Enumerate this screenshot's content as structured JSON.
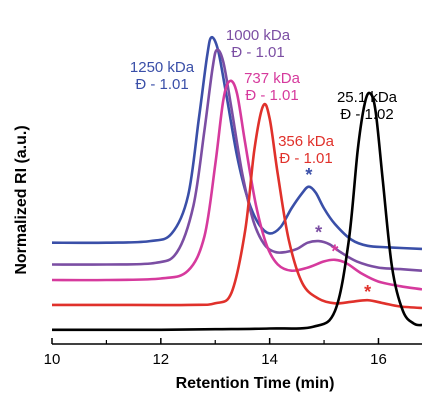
{
  "chart_data": {
    "type": "line",
    "xlabel": "Retention Time (min)",
    "ylabel": "Normalized RI (a.u.)",
    "xlim": [
      10,
      16.8
    ],
    "ylim": [
      0,
      1
    ],
    "x_ticks": [
      "10",
      "12",
      "14",
      "16"
    ],
    "grid": false,
    "legend": "none",
    "series": [
      {
        "color": "#3a4fa8",
        "label_line1": "1250 kDa",
        "label_line2": "Đ - 1.01",
        "star": "*",
        "peak_x": 12.93,
        "peak_y": 0.96,
        "shoulder_x": 14.72,
        "shoulder_y": 0.48,
        "baseline_left": 0.3,
        "baseline_right": 0.28,
        "star_x": 14.72,
        "star_y": 0.53,
        "x": [
          10,
          11,
          11.8,
          12.2,
          12.5,
          12.7,
          12.85,
          12.93,
          13.05,
          13.2,
          13.4,
          13.6,
          13.8,
          14.0,
          14.2,
          14.4,
          14.6,
          14.72,
          14.85,
          15.0,
          15.2,
          15.5,
          15.8,
          16.2,
          16.8
        ],
        "y": [
          0.3,
          0.3,
          0.305,
          0.33,
          0.45,
          0.7,
          0.9,
          0.96,
          0.92,
          0.78,
          0.58,
          0.44,
          0.36,
          0.33,
          0.35,
          0.41,
          0.46,
          0.48,
          0.46,
          0.41,
          0.36,
          0.31,
          0.29,
          0.285,
          0.28
        ]
      },
      {
        "color": "#7b4ea3",
        "label_line1": "1000 kDa",
        "label_line2": "Đ - 1.01",
        "star": "*",
        "peak_x": 13.03,
        "peak_y": 0.92,
        "baseline_left": 0.23,
        "baseline_right": 0.21,
        "star_x": 14.9,
        "star_y": 0.345,
        "x": [
          10,
          11,
          11.9,
          12.3,
          12.6,
          12.8,
          12.95,
          13.03,
          13.15,
          13.3,
          13.5,
          13.7,
          13.9,
          14.1,
          14.3,
          14.5,
          14.7,
          14.9,
          15.1,
          15.3,
          15.6,
          16.0,
          16.4,
          16.8
        ],
        "y": [
          0.23,
          0.23,
          0.235,
          0.27,
          0.42,
          0.66,
          0.86,
          0.92,
          0.88,
          0.73,
          0.52,
          0.37,
          0.295,
          0.27,
          0.27,
          0.28,
          0.3,
          0.305,
          0.295,
          0.27,
          0.24,
          0.22,
          0.215,
          0.21
        ]
      },
      {
        "color": "#d63a9d",
        "label_line1": "737 kDa",
        "label_line2": "Đ - 1.01",
        "star": "*",
        "peak_x": 13.27,
        "peak_y": 0.82,
        "baseline_left": 0.18,
        "baseline_right": 0.15,
        "star_x": 15.2,
        "star_y": 0.285,
        "x": [
          10,
          11,
          12.0,
          12.5,
          12.8,
          13.0,
          13.15,
          13.27,
          13.4,
          13.55,
          13.75,
          13.95,
          14.15,
          14.4,
          14.7,
          15.0,
          15.2,
          15.4,
          15.7,
          16.0,
          16.4,
          16.8
        ],
        "y": [
          0.18,
          0.18,
          0.185,
          0.21,
          0.32,
          0.55,
          0.76,
          0.82,
          0.78,
          0.62,
          0.42,
          0.29,
          0.23,
          0.21,
          0.22,
          0.24,
          0.245,
          0.235,
          0.2,
          0.175,
          0.16,
          0.15
        ]
      },
      {
        "color": "#e0312b",
        "label_line1": "356 kDa",
        "label_line2": "Đ - 1.01",
        "star": "*",
        "peak_x": 13.88,
        "peak_y": 0.74,
        "baseline_left": 0.1,
        "baseline_right": 0.09,
        "star_x": 15.8,
        "star_y": 0.155,
        "x": [
          10,
          11,
          12.5,
          13.0,
          13.3,
          13.55,
          13.72,
          13.88,
          14.0,
          14.15,
          14.35,
          14.6,
          14.9,
          15.2,
          15.5,
          15.8,
          16.1,
          16.4,
          16.8
        ],
        "y": [
          0.1,
          0.1,
          0.1,
          0.105,
          0.14,
          0.34,
          0.6,
          0.74,
          0.7,
          0.52,
          0.31,
          0.17,
          0.12,
          0.105,
          0.11,
          0.115,
          0.105,
          0.095,
          0.09
        ]
      },
      {
        "color": "#000000",
        "label_line1": "25.1 kDa",
        "label_line2": "Đ - 1.02",
        "peak_x": 15.85,
        "peak_y": 0.78,
        "baseline_left": 0.02,
        "baseline_right": 0.03,
        "x": [
          10,
          11,
          12,
          13,
          14,
          14.8,
          15.2,
          15.45,
          15.62,
          15.75,
          15.85,
          15.95,
          16.08,
          16.25,
          16.45,
          16.65,
          16.8
        ],
        "y": [
          0.02,
          0.02,
          0.02,
          0.022,
          0.024,
          0.03,
          0.08,
          0.3,
          0.6,
          0.75,
          0.78,
          0.72,
          0.5,
          0.22,
          0.08,
          0.04,
          0.035
        ]
      }
    ]
  }
}
